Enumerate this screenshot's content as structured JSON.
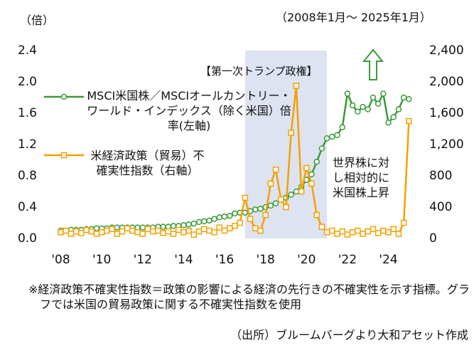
{
  "chart_data": {
    "type": "line",
    "y_unit": "（倍）",
    "period": "（2008年1月～ 2025年1月）",
    "highlight": {
      "label": "【第一次トランプ政権】",
      "xlim": [
        2017,
        2021
      ]
    },
    "annotation": "世界株に対し相対的に米国株上昇",
    "footnote": "※経済政策不確実性指数＝政策の影響による経済の先行きの不確実性を示す指標。グラフでは米国の貿易政策に関する不確実性指数を使用",
    "source": "（出所）ブルームバーグより大和アセット作成",
    "x": [
      2008,
      2008.25,
      2008.5,
      2008.75,
      2009,
      2009.25,
      2009.5,
      2009.75,
      2010,
      2010.25,
      2010.5,
      2010.75,
      2011,
      2011.25,
      2011.5,
      2011.75,
      2012,
      2012.25,
      2012.5,
      2012.75,
      2013,
      2013.25,
      2013.5,
      2013.75,
      2014,
      2014.25,
      2014.5,
      2014.75,
      2015,
      2015.25,
      2015.5,
      2015.75,
      2016,
      2016.25,
      2016.5,
      2016.75,
      2017,
      2017.25,
      2017.5,
      2017.75,
      2018,
      2018.25,
      2018.5,
      2018.75,
      2019,
      2019.25,
      2019.5,
      2019.75,
      2020,
      2020.25,
      2020.5,
      2020.75,
      2021,
      2021.25,
      2021.5,
      2021.75,
      2022,
      2022.25,
      2022.5,
      2022.75,
      2023,
      2023.25,
      2023.5,
      2023.75,
      2024,
      2024.25,
      2024.5,
      2024.75,
      2025
    ],
    "xlim": [
      2007.6,
      2025.3
    ],
    "xticks": [
      {
        "value": 2008,
        "label": "'08"
      },
      {
        "value": 2010,
        "label": "'10"
      },
      {
        "value": 2012,
        "label": "'12"
      },
      {
        "value": 2014,
        "label": "'14"
      },
      {
        "value": 2016,
        "label": "'16"
      },
      {
        "value": 2018,
        "label": "'18"
      },
      {
        "value": 2020,
        "label": "'20"
      },
      {
        "value": 2022,
        "label": "'22"
      },
      {
        "value": 2024,
        "label": "'24"
      }
    ],
    "ylim": [
      0,
      2.4
    ],
    "yticks": [
      {
        "value": 0,
        "label": "0.0"
      },
      0.4,
      0.8,
      1.2,
      1.6,
      {
        "value": 2,
        "label": "2.0"
      },
      2.4
    ],
    "y2lim": [
      0,
      2400
    ],
    "y2ticks": [
      0,
      400,
      800,
      {
        "value": 1200,
        "label": "1,200"
      },
      {
        "value": 1600,
        "label": "1,600"
      },
      {
        "value": 2000,
        "label": "2,000"
      },
      {
        "value": 2400,
        "label": "2,400"
      }
    ],
    "series": [
      {
        "name": "MSCI米国株／MSCIオールカントリー・ワールド・インデックス（除く米国）倍率(左軸)",
        "color": "#3a9a3a",
        "axis": "y",
        "values": [
          0.1,
          0.1,
          0.11,
          0.11,
          0.11,
          0.12,
          0.12,
          0.13,
          0.13,
          0.13,
          0.14,
          0.14,
          0.14,
          0.14,
          0.14,
          0.14,
          0.14,
          0.14,
          0.14,
          0.15,
          0.15,
          0.15,
          0.16,
          0.16,
          0.17,
          0.18,
          0.19,
          0.21,
          0.22,
          0.23,
          0.25,
          0.27,
          0.28,
          0.29,
          0.32,
          0.33,
          0.33,
          0.35,
          0.37,
          0.38,
          0.4,
          0.42,
          0.45,
          0.5,
          0.52,
          0.56,
          0.6,
          0.66,
          0.75,
          0.82,
          0.98,
          1.15,
          1.28,
          1.3,
          1.32,
          1.42,
          1.85,
          1.7,
          1.62,
          1.68,
          1.65,
          1.8,
          1.72,
          1.85,
          1.48,
          1.55,
          1.65,
          1.8,
          1.78
        ]
      },
      {
        "name": "米経済政策（貿易）不確実性指数（右軸）",
        "color": "#f5a000",
        "axis": "y2",
        "values": [
          80,
          100,
          60,
          90,
          70,
          110,
          90,
          60,
          80,
          100,
          120,
          60,
          90,
          130,
          100,
          80,
          60,
          120,
          90,
          100,
          70,
          90,
          60,
          110,
          80,
          100,
          50,
          90,
          120,
          100,
          80,
          140,
          100,
          130,
          160,
          200,
          520,
          250,
          130,
          100,
          300,
          700,
          880,
          500,
          400,
          1350,
          1950,
          600,
          900,
          700,
          300,
          150,
          80,
          100,
          60,
          90,
          50,
          80,
          100,
          60,
          90,
          120,
          70,
          100,
          80,
          120,
          60,
          200,
          1500
        ]
      }
    ]
  }
}
